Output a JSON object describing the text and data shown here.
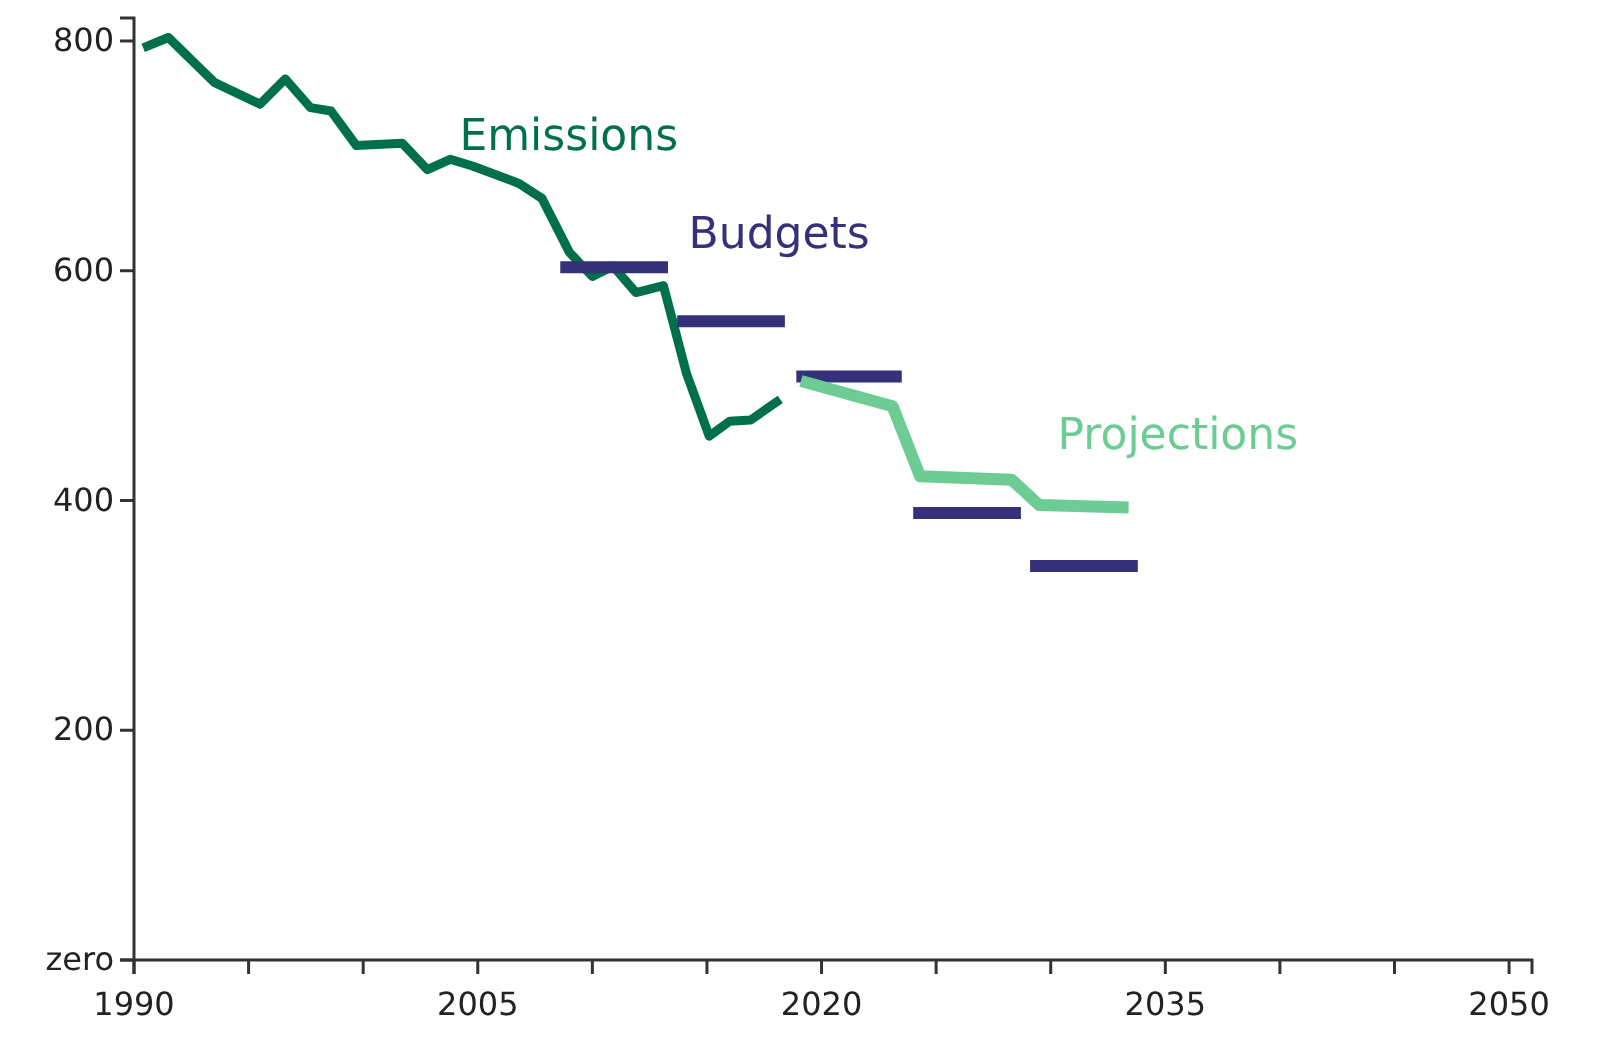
{
  "chart_data": {
    "type": "line",
    "xlim": [
      1990,
      2051
    ],
    "ylim": [
      0,
      820
    ],
    "xticks": [
      1990,
      {
        "value": 1995,
        "label": null
      },
      {
        "value": 2000,
        "label": null
      },
      2005,
      {
        "value": 2010,
        "label": null
      },
      {
        "value": 2015,
        "label": null
      },
      2020,
      {
        "value": 2025,
        "label": null
      },
      {
        "value": 2030,
        "label": null
      },
      2035,
      {
        "value": 2040,
        "label": null
      },
      {
        "value": 2045,
        "label": null
      },
      2050
    ],
    "yticks": [
      {
        "value": 0,
        "label": "zero"
      },
      200,
      400,
      600,
      800
    ],
    "grid": false,
    "marker": "none",
    "line_style": "solid",
    "series": [
      {
        "name": "Emissions",
        "color": "#00704a",
        "x": [
          1990.4,
          1991.5,
          1993.5,
          1995.5,
          1996.6,
          1997.7,
          1998.6,
          1999.7,
          2001.7,
          2002.8,
          2003.8,
          2004.8,
          2006.8,
          2007.8,
          2009.0,
          2010.0,
          2010.9,
          2011.9,
          2013.1,
          2014.1,
          2015.1,
          2016.0,
          2016.9,
          2018.2
        ],
        "values": [
          794,
          803,
          764,
          745,
          767,
          742,
          739,
          709,
          711,
          688,
          697,
          691,
          676,
          663,
          616,
          595,
          604,
          581,
          587,
          511,
          456,
          469,
          470,
          488
        ]
      },
      {
        "name": "Budgets",
        "color": "#35307a",
        "x": [
          2008.6,
          2013.3,
          2013.5,
          2013.7,
          2018.4,
          2018.6,
          2018.9,
          2023.5,
          2023.7,
          2024.0,
          2028.7,
          2028.9,
          2029.1,
          2033.8
        ],
        "values": [
          603,
          603,
          null,
          556,
          556,
          null,
          508,
          508,
          null,
          389,
          389,
          null,
          343,
          343
        ]
      },
      {
        "name": "Projections",
        "color": "#6dcc94",
        "x": [
          2019.1,
          2023.1,
          2024.3,
          2028.3,
          2029.5,
          2033.4
        ],
        "values": [
          504,
          482,
          421,
          418,
          396,
          394
        ]
      }
    ]
  }
}
